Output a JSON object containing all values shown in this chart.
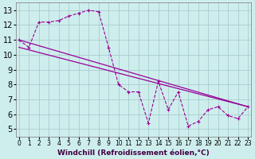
{
  "xlabel": "Windchill (Refroidissement éolien,°C)",
  "background_color": "#ceeeed",
  "grid_color": "#aacccc",
  "line_color": "#990099",
  "x_ticks": [
    0,
    1,
    2,
    3,
    4,
    5,
    6,
    7,
    8,
    9,
    10,
    11,
    12,
    13,
    14,
    15,
    16,
    17,
    18,
    19,
    20,
    21,
    22,
    23
  ],
  "y_ticks": [
    5,
    6,
    7,
    8,
    9,
    10,
    11,
    12,
    13
  ],
  "xlim": [
    -0.3,
    23.3
  ],
  "ylim": [
    4.5,
    13.5
  ],
  "series1_x": [
    0,
    1,
    2,
    3,
    4,
    5,
    6,
    7,
    8,
    9,
    10,
    11,
    12,
    13,
    14,
    15,
    16,
    17,
    18,
    19,
    20,
    21,
    22,
    23
  ],
  "series1_y": [
    11.0,
    10.5,
    12.2,
    12.2,
    12.3,
    12.6,
    12.8,
    13.0,
    12.9,
    10.5,
    8.0,
    7.5,
    7.5,
    5.4,
    8.2,
    6.3,
    7.5,
    5.2,
    5.5,
    6.3,
    6.5,
    5.9,
    5.7,
    6.5
  ],
  "series2_x": [
    0,
    23
  ],
  "series2_y": [
    11.0,
    6.5
  ],
  "series3_x": [
    0,
    23
  ],
  "series3_y": [
    10.5,
    6.5
  ],
  "xlabel_color": "#440044",
  "xlabel_fontsize": 6.5,
  "tick_fontsize_x": 5.5,
  "tick_fontsize_y": 7.0
}
